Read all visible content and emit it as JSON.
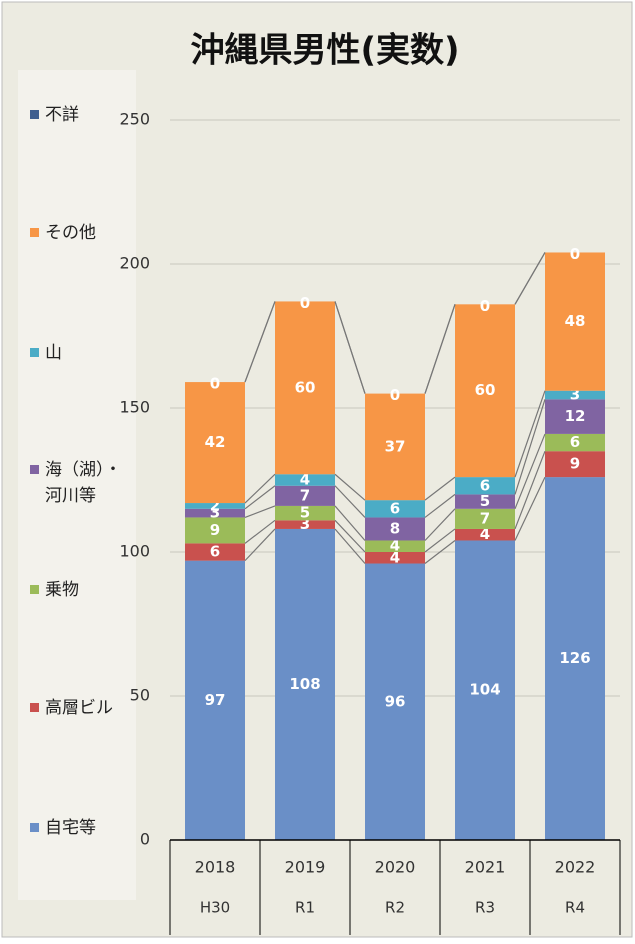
{
  "chart_data": {
    "type": "stacked_bar",
    "title": "沖縄県男性(実数)",
    "categories": [
      "2018",
      "2019",
      "2020",
      "2021",
      "2022"
    ],
    "category_eras": [
      "H30",
      "R1",
      "R2",
      "R3",
      "R4"
    ],
    "series": [
      {
        "name": "自宅等",
        "color": "#6a8fc7",
        "values": [
          97,
          108,
          96,
          104,
          126
        ]
      },
      {
        "name": "高層ビル",
        "color": "#c9514e",
        "values": [
          6,
          3,
          4,
          4,
          9
        ]
      },
      {
        "name": "乗物",
        "color": "#9bbb59",
        "values": [
          9,
          5,
          4,
          7,
          6
        ]
      },
      {
        "name": "海（湖）・\n河川等",
        "color": "#8064a2",
        "values": [
          3,
          7,
          8,
          5,
          12
        ]
      },
      {
        "name": "山",
        "color": "#4bacc6",
        "values": [
          2,
          4,
          6,
          6,
          3
        ]
      },
      {
        "name": "その他",
        "color": "#f79646",
        "values": [
          42,
          60,
          37,
          60,
          48
        ]
      },
      {
        "name": "不詳",
        "color": "#3f5f8f",
        "values": [
          0,
          0,
          0,
          0,
          0
        ]
      }
    ],
    "ylim": [
      0,
      250
    ],
    "yticks": [
      0,
      50,
      100,
      150,
      200,
      250
    ],
    "grid": true,
    "legend": "left"
  }
}
